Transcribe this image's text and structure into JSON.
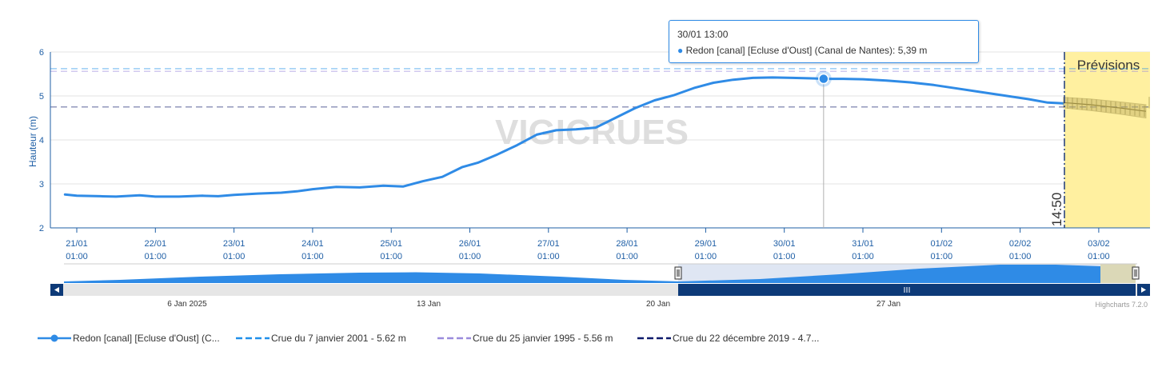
{
  "chart_data": {
    "type": "line",
    "ylabel": "Hauteur (m)",
    "ylim": [
      2,
      6
    ],
    "yticks": [
      "2",
      "3",
      "4",
      "5",
      "6"
    ],
    "xticks": [
      {
        "day": "21/01",
        "time": "01:00"
      },
      {
        "day": "22/01",
        "time": "01:00"
      },
      {
        "day": "23/01",
        "time": "01:00"
      },
      {
        "day": "24/01",
        "time": "01:00"
      },
      {
        "day": "25/01",
        "time": "01:00"
      },
      {
        "day": "26/01",
        "time": "01:00"
      },
      {
        "day": "27/01",
        "time": "01:00"
      },
      {
        "day": "28/01",
        "time": "01:00"
      },
      {
        "day": "29/01",
        "time": "01:00"
      },
      {
        "day": "30/01",
        "time": "01:00"
      },
      {
        "day": "31/01",
        "time": "01:00"
      },
      {
        "day": "01/02",
        "time": "01:00"
      },
      {
        "day": "02/02",
        "time": "01:00"
      },
      {
        "day": "03/02",
        "time": "01:00"
      }
    ],
    "series": [
      {
        "name": "Redon [canal] [Ecluse d'Oust] (Canal de Nantes)",
        "color": "#2f8be6",
        "x_day": [
          -0.15,
          0.0,
          0.3,
          0.5,
          0.8,
          1.0,
          1.3,
          1.6,
          1.8,
          2.0,
          2.3,
          2.6,
          2.8,
          3.0,
          3.3,
          3.6,
          3.9,
          4.15,
          4.4,
          4.65,
          4.9,
          5.1,
          5.35,
          5.6,
          5.85,
          6.1,
          6.35,
          6.6,
          6.85,
          7.1,
          7.35,
          7.6,
          7.85,
          8.1,
          8.35,
          8.6,
          8.85,
          9.1,
          9.35,
          9.5,
          9.75,
          10.0,
          10.3,
          10.6,
          10.9,
          11.2,
          11.5,
          11.8,
          12.1,
          12.35,
          12.55
        ],
        "y": [
          2.76,
          2.73,
          2.72,
          2.71,
          2.74,
          2.71,
          2.71,
          2.73,
          2.72,
          2.75,
          2.78,
          2.8,
          2.83,
          2.88,
          2.93,
          2.92,
          2.96,
          2.94,
          3.06,
          3.16,
          3.38,
          3.48,
          3.67,
          3.88,
          4.12,
          4.22,
          4.24,
          4.28,
          4.5,
          4.72,
          4.9,
          5.02,
          5.18,
          5.3,
          5.37,
          5.41,
          5.42,
          5.41,
          5.4,
          5.39,
          5.39,
          5.38,
          5.35,
          5.31,
          5.25,
          5.17,
          5.09,
          5.01,
          4.93,
          4.85,
          4.83
        ]
      },
      {
        "name": "Prévisions",
        "x_day": [
          12.55,
          12.9,
          13.3,
          13.6
        ],
        "y": [
          4.85,
          4.8,
          4.72,
          4.65
        ],
        "band": [
          0.12,
          0.13,
          0.14,
          0.15
        ]
      }
    ],
    "thresholds": [
      {
        "name": "Crue du 7 janvier 2001 - 5.62 m",
        "value": 5.62,
        "color": "#1f8fea"
      },
      {
        "name": "Crue du 25 janvier 1995 - 5.56 m",
        "value": 5.56,
        "color": "#9a8bdc"
      },
      {
        "name": "Crue du 22 décembre 2019 - 4.7...",
        "value": 4.75,
        "color": "#0e1a6b"
      }
    ],
    "now_label": "14:50",
    "forecast_label": "Prévisions",
    "watermark": "VIGICRUES",
    "colors": {
      "axis": "#1f5fa6",
      "line": "#2f8be6",
      "forecast_bg": "#fff0a0",
      "navigator": "#2f8be6"
    },
    "navigator": {
      "ticks": [
        "6 Jan 2025",
        "13 Jan",
        "20 Jan",
        "27 Jan"
      ],
      "selected_range": [
        "21/01",
        "03/02"
      ]
    }
  },
  "tooltip": {
    "title": "30/01 13:00",
    "bullet": "●",
    "series_name": "Redon [canal] [Ecluse d'Oust] (Canal de Nantes)",
    "value": "5,39 m"
  },
  "legend": [
    {
      "label": "Redon [canal] [Ecluse d'Oust] (C...",
      "style": "solid-marker",
      "color": "#2f8be6"
    },
    {
      "label": "Crue du 7 janvier 2001 - 5.62 m",
      "style": "dash",
      "color": "#1f8fea"
    },
    {
      "label": "Crue du 25 janvier 1995 - 5.56 m",
      "style": "dash",
      "color": "#9a8bdc"
    },
    {
      "label": "Crue du 22 décembre 2019 - 4.7...",
      "style": "dash",
      "color": "#0e1a6b"
    }
  ],
  "credits": "Highcharts 7.2.0"
}
